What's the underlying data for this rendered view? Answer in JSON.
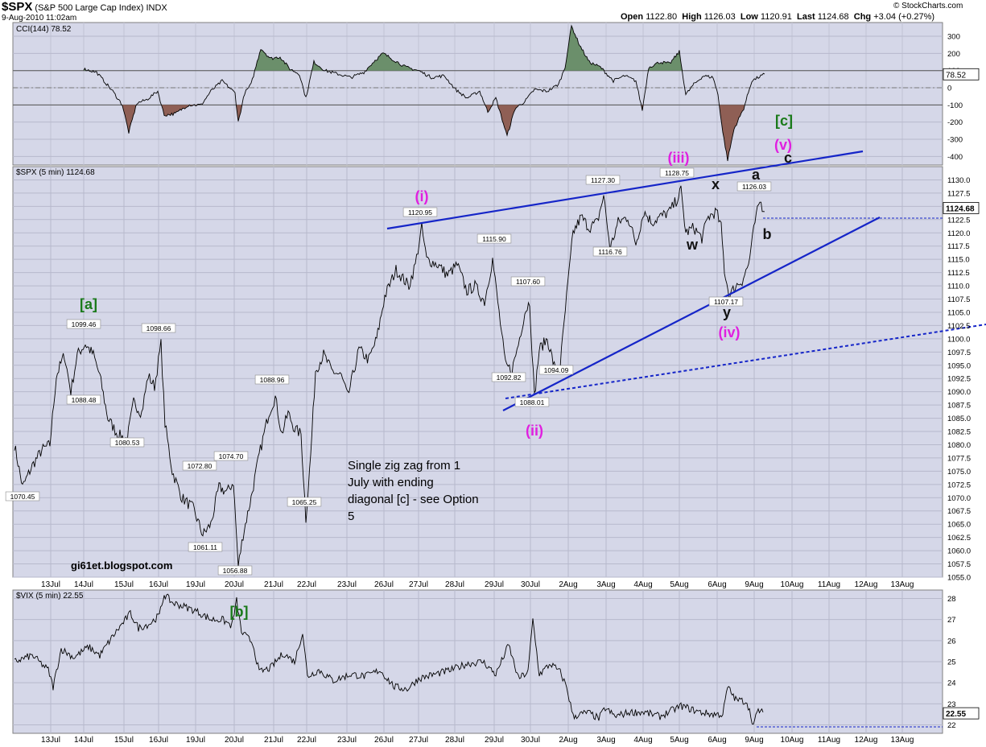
{
  "header": {
    "symbol": "$SPX",
    "name": "(S&P 500 Large Cap Index)",
    "exchange": "INDX",
    "datetime": "9-Aug-2010 11:02am",
    "brand": "© StockCharts.com",
    "open_label": "Open",
    "open": "1122.80",
    "high_label": "High",
    "high": "1126.03",
    "low_label": "Low",
    "low": "1120.91",
    "last_label": "Last",
    "last": "1124.68",
    "chg_label": "Chg",
    "chg": "+3.04 (+0.27%)"
  },
  "panels": {
    "cci": {
      "legend": "CCI(144) 78.52",
      "current": "78.52",
      "ticks": [
        "300",
        "200",
        "100",
        "0",
        "-100",
        "-200",
        "-300",
        "-400"
      ]
    },
    "price": {
      "legend": "$SPX (5 min) 1124.68",
      "current": "1124.68",
      "ticks": [
        "1130.0",
        "1127.5",
        "1125.0",
        "1122.5",
        "1120.0",
        "1117.5",
        "1115.0",
        "1112.5",
        "1110.0",
        "1107.5",
        "1105.0",
        "1102.5",
        "1100.0",
        "1097.5",
        "1095.0",
        "1092.5",
        "1090.0",
        "1087.5",
        "1085.0",
        "1082.5",
        "1080.0",
        "1077.5",
        "1075.0",
        "1072.5",
        "1070.0",
        "1067.5",
        "1065.0",
        "1062.5",
        "1060.0",
        "1057.5",
        "1055.0"
      ]
    },
    "vix": {
      "legend": "$VIX (5 min) 22.55",
      "current": "22.55",
      "ticks": [
        "28",
        "27",
        "26",
        "25",
        "24",
        "23",
        "22"
      ]
    }
  },
  "dates": [
    "13Jul",
    "14Jul",
    "15Jul",
    "16Jul",
    "19Jul",
    "20Jul",
    "21Jul",
    "22Jul",
    "23Jul",
    "26Jul",
    "27Jul",
    "28Jul",
    "29Jul",
    "30Jul",
    "2Aug",
    "3Aug",
    "4Aug",
    "5Aug",
    "6Aug",
    "9Aug",
    "10Aug",
    "11Aug",
    "12Aug",
    "13Aug"
  ],
  "wave_labels": [
    {
      "text": "[a]",
      "color": "#1a7a1a"
    },
    {
      "text": "[b]",
      "color": "#1a7a1a"
    },
    {
      "text": "[c]",
      "color": "#1a7a1a"
    },
    {
      "text": "(i)",
      "color": "#e020e0"
    },
    {
      "text": "(ii)",
      "color": "#e020e0"
    },
    {
      "text": "(iii)",
      "color": "#e020e0"
    },
    {
      "text": "(iv)",
      "color": "#e020e0"
    },
    {
      "text": "(v)",
      "color": "#e020e0"
    },
    {
      "text": "w",
      "color": "#111111"
    },
    {
      "text": "x",
      "color": "#111111"
    },
    {
      "text": "y",
      "color": "#111111"
    },
    {
      "text": "a",
      "color": "#111111"
    },
    {
      "text": "b",
      "color": "#111111"
    },
    {
      "text": "c",
      "color": "#111111"
    }
  ],
  "annotation": {
    "lines": [
      "Single zig zag from 1",
      "July with ending",
      "diagonal [c] - see Option",
      "5"
    ]
  },
  "watermark": "gi61et.blogspot.com",
  "chart_data": {
    "type": "line",
    "x": [
      "13Jul",
      "14Jul",
      "15Jul",
      "16Jul",
      "19Jul",
      "20Jul",
      "21Jul",
      "22Jul",
      "23Jul",
      "26Jul",
      "27Jul",
      "28Jul",
      "29Jul",
      "30Jul",
      "2Aug",
      "3Aug",
      "4Aug",
      "5Aug",
      "6Aug",
      "9Aug"
    ],
    "series": [
      {
        "name": "$SPX (5 min)",
        "values": [
          1077,
          1095,
          1082,
          1094,
          1065,
          1062,
          1085,
          1067,
          1093,
          1112,
          1113,
          1112,
          1108,
          1096,
          1121,
          1123,
          1121,
          1121,
          1110,
          1124.68
        ]
      },
      {
        "name": "CCI(144)",
        "values": [
          100,
          -40,
          -150,
          -100,
          -80,
          -100,
          160,
          40,
          10,
          140,
          90,
          -20,
          -60,
          -30,
          180,
          80,
          -30,
          60,
          -120,
          78.52
        ]
      },
      {
        "name": "$VIX (5 min)",
        "values": [
          25.3,
          25.7,
          26.6,
          27.6,
          27.6,
          27.5,
          25.7,
          25.2,
          24.8,
          24.1,
          24.2,
          24.8,
          24.9,
          25.2,
          22.9,
          22.8,
          22.6,
          22.7,
          23.6,
          22.55
        ]
      }
    ],
    "price_labels": [
      "1070.45",
      "1099.46",
      "1088.48",
      "1080.53",
      "1098.66",
      "1072.80",
      "1061.11",
      "1074.70",
      "1056.88",
      "1088.96",
      "1065.25",
      "1120.95",
      "1115.90",
      "1092.82",
      "1107.60",
      "1094.09",
      "1088.01",
      "1127.30",
      "1116.76",
      "1128.75",
      "1107.17",
      "1126.03"
    ],
    "ylim_price": [
      1055,
      1132.5
    ],
    "ylim_cci": [
      -450,
      380
    ],
    "ylim_vix": [
      21.6,
      28.4
    ],
    "grid": true
  }
}
